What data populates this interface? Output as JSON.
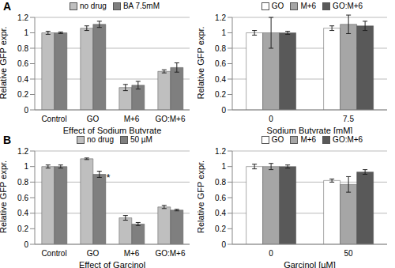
{
  "chart_data": [
    {
      "type": "bar",
      "panel_label": "A",
      "x_label": "Effect of Sodium Butyrate",
      "y_label": "Relative GFP expr.",
      "categories": [
        "Control",
        "GO",
        "M+6",
        "GO:M+6"
      ],
      "series": [
        {
          "name": "no drug",
          "color": "#bfbfbf",
          "values": [
            1.0,
            1.06,
            0.29,
            0.5
          ],
          "errors": [
            0.02,
            0.03,
            0.04,
            0.02
          ]
        },
        {
          "name": "BA 7.5mM",
          "color": "#7f7f7f",
          "values": [
            1.0,
            1.11,
            0.32,
            0.55
          ],
          "errors": [
            0.01,
            0.04,
            0.05,
            0.06
          ]
        }
      ],
      "ylim": [
        0,
        1.2
      ],
      "yticks": [
        0,
        0.2,
        0.4,
        0.6,
        0.8,
        1,
        1.2
      ],
      "grid": true,
      "legend": "top"
    },
    {
      "type": "bar",
      "x_label": "Sodium Butyrate [mM]",
      "y_label": "Relative GFP expr.",
      "categories": [
        "0",
        "7.5"
      ],
      "series": [
        {
          "name": "GO",
          "color": "#ffffff",
          "values": [
            1.0,
            1.06
          ],
          "errors": [
            0.03,
            0.03
          ]
        },
        {
          "name": "M+6",
          "color": "#a6a6a6",
          "values": [
            1.0,
            1.11
          ],
          "errors": [
            0.2,
            0.12
          ]
        },
        {
          "name": "GO:M+6",
          "color": "#595959",
          "values": [
            1.0,
            1.09
          ],
          "errors": [
            0.02,
            0.06
          ]
        }
      ],
      "ylim": [
        0,
        1.2
      ],
      "yticks": [
        0,
        0.2,
        0.4,
        0.6,
        0.8,
        1,
        1.2
      ],
      "grid": true,
      "legend": "top"
    },
    {
      "type": "bar",
      "panel_label": "B",
      "x_label": "Effect of Garcinol",
      "y_label": "Relative GFP expr.",
      "categories": [
        "Control",
        "GO",
        "M+6",
        "GO:M+6"
      ],
      "series": [
        {
          "name": "no drug",
          "color": "#bfbfbf",
          "values": [
            1.0,
            1.1,
            0.34,
            0.48
          ],
          "errors": [
            0.02,
            0.01,
            0.03,
            0.02
          ]
        },
        {
          "name": "50 µM",
          "color": "#7f7f7f",
          "values": [
            1.0,
            0.9,
            0.26,
            0.44
          ],
          "errors": [
            0.02,
            0.04,
            0.02,
            0.01
          ]
        }
      ],
      "ylim": [
        0,
        1.2
      ],
      "yticks": [
        0,
        0.2,
        0.4,
        0.6,
        0.8,
        1,
        1.2
      ],
      "grid": true,
      "legend": "top",
      "annotations": [
        {
          "text": "*",
          "series": "50 µM",
          "category": "GO"
        }
      ]
    },
    {
      "type": "bar",
      "x_label": "Garcinol [µM]",
      "y_label": "Relative GFP expr.",
      "categories": [
        "0",
        "50"
      ],
      "series": [
        {
          "name": "GO",
          "color": "#ffffff",
          "values": [
            1.0,
            0.82
          ],
          "errors": [
            0.03,
            0.02
          ]
        },
        {
          "name": "M+6",
          "color": "#a6a6a6",
          "values": [
            1.0,
            0.77
          ],
          "errors": [
            0.04,
            0.1
          ]
        },
        {
          "name": "GO:M+6",
          "color": "#595959",
          "values": [
            1.0,
            0.93
          ],
          "errors": [
            0.02,
            0.03
          ]
        }
      ],
      "ylim": [
        0,
        1.2
      ],
      "yticks": [
        0,
        0.2,
        0.4,
        0.6,
        0.8,
        1,
        1.2
      ],
      "grid": true,
      "legend": "top"
    }
  ]
}
